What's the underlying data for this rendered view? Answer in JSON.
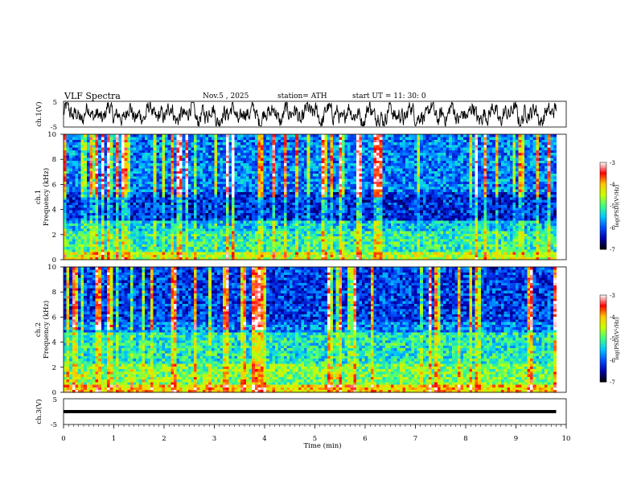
{
  "header": {
    "title": "VLF  Spectra",
    "date": "Nov.5  , 2025",
    "station": "station= ATH",
    "start": "start  UT  =    11: 30: 0"
  },
  "colors": {
    "scale": [
      "#000000",
      "#0000b0",
      "#0050ff",
      "#00c8ff",
      "#40ff80",
      "#c8ff00",
      "#ffc800",
      "#ff0000",
      "#ffffff"
    ]
  },
  "chart_data": [
    {
      "type": "line",
      "id": "ch1",
      "ylabel": "ch.1(V)",
      "ylim": [
        -5,
        5
      ],
      "yticks": [
        "5",
        "-5"
      ]
    },
    {
      "type": "heatmap",
      "id": "spec1",
      "ylabel": "ch.1\nFrequency (kHz)",
      "ylim": [
        0,
        10
      ],
      "yticks": [
        "0",
        "2",
        "4",
        "6",
        "8",
        "10"
      ],
      "colorbar": {
        "label": "log(PSD)(V²/Hz)",
        "ticks": [
          "-3",
          "-4",
          "-5",
          "-6",
          "-7"
        ],
        "range": [
          -7,
          -3
        ]
      }
    },
    {
      "type": "heatmap",
      "id": "spec2",
      "ylabel": "ch.2\nFrequency (kHz)",
      "ylim": [
        0,
        10
      ],
      "yticks": [
        "0",
        "2",
        "4",
        "6",
        "8",
        "10"
      ],
      "colorbar": {
        "label": "log(PSD)(V²/Hz)",
        "ticks": [
          "-3",
          "-4",
          "-5",
          "-6",
          "-7"
        ],
        "range": [
          -7,
          -3
        ]
      }
    },
    {
      "type": "line",
      "id": "ch3",
      "ylabel": "ch.3(V)",
      "ylim": [
        -5,
        5
      ],
      "yticks": [
        "5",
        "-5"
      ],
      "value": 0
    }
  ],
  "xaxis": {
    "label": "Time  (min)",
    "ticks": [
      "0",
      "1",
      "2",
      "3",
      "4",
      "5",
      "6",
      "7",
      "8",
      "9",
      "10"
    ],
    "xlim": [
      0,
      10
    ],
    "data_end": 9.8
  }
}
